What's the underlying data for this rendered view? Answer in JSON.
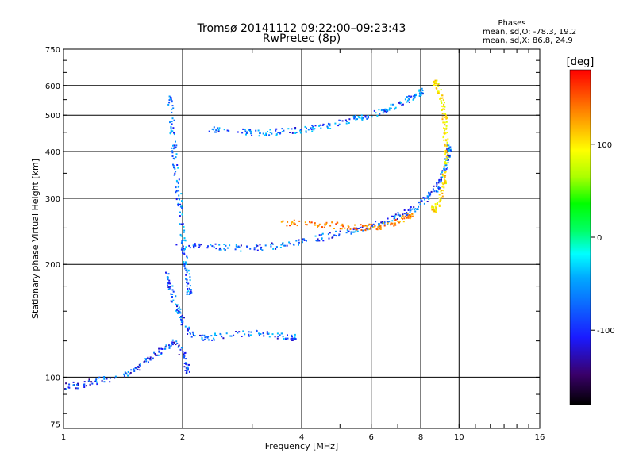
{
  "chart_data": {
    "type": "scatter",
    "title": "Tromsø 20141112 09:22:00–09:23:43",
    "subtitle": "RwPretec (8p)",
    "xlabel": "Frequency [MHz]",
    "ylabel": "Stationary phase Virtual Height [km]",
    "x_scale": "log2",
    "y_scale": "log",
    "xlim": [
      1,
      16
    ],
    "ylim": [
      73,
      750
    ],
    "x_ticks": [
      1,
      2,
      4,
      6,
      8,
      10,
      16
    ],
    "x_tick_labels": [
      "1",
      "2",
      "4",
      "6",
      "8",
      "10",
      "16"
    ],
    "y_ticks": [
      75,
      100,
      200,
      300,
      400,
      500,
      600,
      750
    ],
    "y_tick_labels": [
      "75",
      "100",
      "200",
      "300",
      "400",
      "500",
      "600",
      "750"
    ],
    "grid": true,
    "stats": {
      "heading": "Phases",
      "line_o": "mean, sd,O: -78.3, 19.2",
      "line_x": "mean, sd,X:  86.8, 24.9"
    },
    "colorbar": {
      "label": "[deg]",
      "range": [
        -180,
        180
      ],
      "ticks": [
        100,
        0,
        -100
      ],
      "tick_labels": [
        "100",
        "0",
        "-100"
      ],
      "colors": [
        "#000000",
        "#3a006a",
        "#1a1aff",
        "#00aaff",
        "#00ffff",
        "#00ff66",
        "#00ff00",
        "#aaff00",
        "#ffff00",
        "#ffaa00",
        "#ff5500",
        "#ff0000"
      ]
    },
    "traces": [
      {
        "name": "",
        "phase": -100,
        "points": [
          [
            1.9,
            225
          ],
          [
            2.2,
            224
          ],
          [
            2.5,
            223
          ],
          [
            2.8,
            222
          ],
          [
            3.2,
            223
          ],
          [
            3.6,
            227
          ],
          [
            4,
            232
          ],
          [
            4.5,
            237
          ],
          [
            5,
            243
          ],
          [
            5.5,
            249
          ],
          [
            6,
            255
          ],
          [
            6.5,
            262
          ],
          [
            7,
            270
          ],
          [
            7.5,
            280
          ],
          [
            8,
            292
          ],
          [
            8.4,
            305
          ],
          [
            8.8,
            325
          ],
          [
            9.1,
            350
          ],
          [
            9.3,
            380
          ],
          [
            9.4,
            410
          ]
        ]
      },
      {
        "name": "",
        "phase": -95,
        "points": [
          [
            2.3,
            460
          ],
          [
            2.6,
            455
          ],
          [
            3,
            450
          ],
          [
            3.4,
            452
          ],
          [
            3.8,
            457
          ],
          [
            4.2,
            462
          ],
          [
            4.6,
            470
          ],
          [
            5,
            480
          ],
          [
            5.5,
            492
          ],
          [
            6,
            505
          ],
          [
            6.5,
            520
          ],
          [
            7,
            535
          ],
          [
            7.5,
            555
          ],
          [
            8,
            580
          ]
        ]
      },
      {
        "name": "",
        "phase": 90,
        "points": [
          [
            8.6,
            620
          ],
          [
            8.8,
            600
          ],
          [
            9,
            560
          ],
          [
            9.1,
            520
          ],
          [
            9.2,
            480
          ],
          [
            9.2,
            440
          ],
          [
            9.25,
            400
          ],
          [
            9.2,
            360
          ],
          [
            9.1,
            330
          ],
          [
            8.9,
            300
          ],
          [
            8.6,
            280
          ]
        ]
      },
      {
        "name": "",
        "phase": -90,
        "points": [
          [
            1.85,
            560
          ],
          [
            1.87,
            500
          ],
          [
            1.88,
            450
          ],
          [
            1.9,
            400
          ],
          [
            1.92,
            350
          ],
          [
            1.95,
            300
          ],
          [
            1.98,
            260
          ],
          [
            2,
            230
          ],
          [
            2.02,
            210
          ],
          [
            2.05,
            190
          ],
          [
            2.07,
            170
          ]
        ]
      },
      {
        "name": "",
        "phase": -100,
        "points": [
          [
            1.8,
            190
          ],
          [
            1.85,
            175
          ],
          [
            1.9,
            160
          ],
          [
            1.95,
            150
          ],
          [
            2,
            140
          ],
          [
            2.1,
            130
          ],
          [
            2.3,
            128
          ],
          [
            2.6,
            130
          ],
          [
            3,
            132
          ],
          [
            3.4,
            130
          ],
          [
            3.8,
            128
          ]
        ]
      },
      {
        "name": "",
        "phase": -110,
        "points": [
          [
            1,
            95
          ],
          [
            1.1,
            96
          ],
          [
            1.2,
            98
          ],
          [
            1.35,
            100
          ],
          [
            1.5,
            105
          ],
          [
            1.6,
            110
          ],
          [
            1.7,
            115
          ],
          [
            1.8,
            120
          ],
          [
            1.9,
            125
          ],
          [
            2,
            115
          ],
          [
            2.05,
            105
          ]
        ]
      },
      {
        "name": "",
        "phase": 130,
        "points": [
          [
            3.5,
            260
          ],
          [
            4,
            258
          ],
          [
            4.5,
            256
          ],
          [
            5,
            255
          ],
          [
            5.5,
            253
          ],
          [
            6,
            252
          ],
          [
            6.5,
            255
          ],
          [
            7,
            262
          ],
          [
            7.5,
            270
          ]
        ]
      }
    ]
  }
}
